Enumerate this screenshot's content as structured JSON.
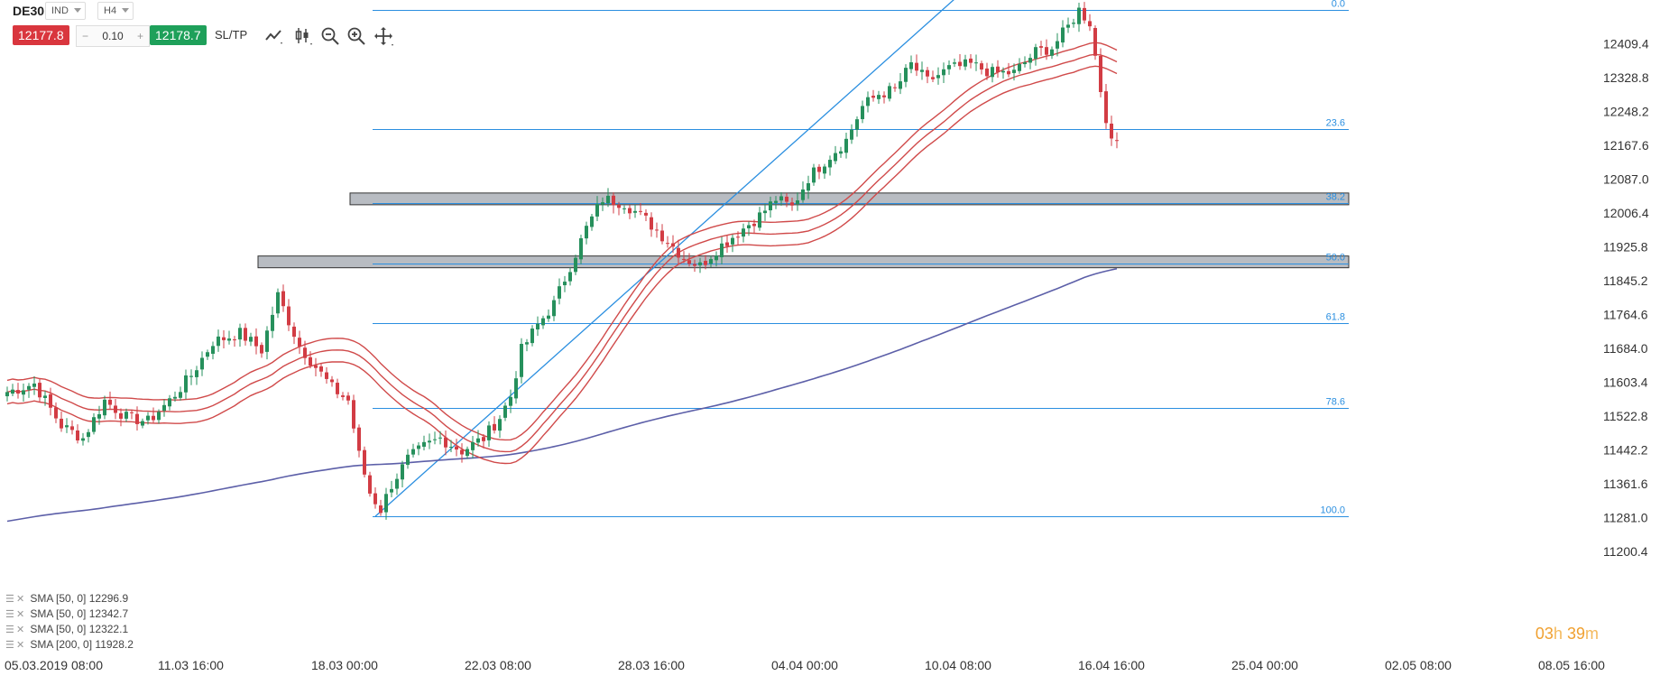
{
  "toolbar": {
    "symbol": "DE30",
    "type": "IND",
    "timeframe": "H4",
    "sell_price": "12177.8",
    "lot_minus": "−",
    "lot_value": "0.10",
    "lot_plus": "+",
    "buy_price": "12178.7",
    "sltp_label": "SL/TP",
    "tools": [
      "line-chart-icon",
      "candles-icon",
      "zoom-out-icon",
      "zoom-in-icon",
      "crosshair-move-icon"
    ]
  },
  "legend": [
    {
      "label": "SMA [50, 0]",
      "value": "12296.9"
    },
    {
      "label": "SMA [50, 0]",
      "value": "12342.7"
    },
    {
      "label": "SMA [50, 0]",
      "value": "12322.1"
    },
    {
      "label": "SMA [200, 0]",
      "value": "11928.2"
    }
  ],
  "timer": {
    "hours": "03",
    "h_unit": "h",
    "minutes": "39",
    "m_unit": "m"
  },
  "colors": {
    "up": "#26905c",
    "down": "#d23c44",
    "fib": "#2b8fe0",
    "sma50": "#d04a4a",
    "sma200": "#5c5fa8",
    "zone_fill": "#b8bcc2",
    "zone_border": "#333333",
    "axis_text": "#333333"
  },
  "chart_data": {
    "type": "candlestick",
    "symbol": "DE30",
    "timeframe": "H4",
    "ylim": [
      11200.4,
      12490.0
    ],
    "y_ticks": [
      "12409.4",
      "12328.8",
      "12248.2",
      "12167.6",
      "12087.0",
      "12006.4",
      "11925.8",
      "11845.2",
      "11764.6",
      "11684.0",
      "11603.4",
      "11522.8",
      "11442.2",
      "11361.6",
      "11281.0",
      "11200.4"
    ],
    "x_ticks": [
      "05.03.2019 08:00",
      "11.03 16:00",
      "18.03 00:00",
      "22.03 08:00",
      "28.03 16:00",
      "04.04 00:00",
      "10.04 08:00",
      "16.04 16:00",
      "25.04 00:00",
      "02.05 08:00",
      "08.05 16:00"
    ],
    "n_candles": 230,
    "fibonacci": {
      "high": 12490.0,
      "low": 11284.0,
      "levels": [
        {
          "label": "0.0",
          "value": 12490.0
        },
        {
          "label": "23.6",
          "value": 12205.4
        },
        {
          "label": "38.2",
          "value": 12029.3
        },
        {
          "label": "50.0",
          "value": 11887.0
        },
        {
          "label": "61.8",
          "value": 11744.7
        },
        {
          "label": "78.6",
          "value": 11542.1
        },
        {
          "label": "100.0",
          "value": 11284.0
        }
      ]
    },
    "trendline": {
      "from": {
        "candle": 68,
        "price": 11284.0
      },
      "to": {
        "candle": 173,
        "price": 12490.0
      }
    },
    "zones": [
      {
        "from_candle": 65,
        "price_top": 12054.0,
        "price_bottom": 12026.0
      },
      {
        "from_candle": 48,
        "price_top": 11904.0,
        "price_bottom": 11876.0
      }
    ],
    "anchors": [
      [
        0,
        11580
      ],
      [
        5,
        11600
      ],
      [
        10,
        11500
      ],
      [
        14,
        11470
      ],
      [
        18,
        11560
      ],
      [
        22,
        11520
      ],
      [
        26,
        11510
      ],
      [
        30,
        11560
      ],
      [
        34,
        11620
      ],
      [
        38,
        11700
      ],
      [
        43,
        11720
      ],
      [
        47,
        11680
      ],
      [
        50,
        11810
      ],
      [
        54,
        11690
      ],
      [
        57,
        11640
      ],
      [
        60,
        11590
      ],
      [
        63,
        11560
      ],
      [
        65,
        11430
      ],
      [
        67,
        11340
      ],
      [
        69,
        11300
      ],
      [
        71,
        11360
      ],
      [
        74,
        11420
      ],
      [
        77,
        11450
      ],
      [
        80,
        11470
      ],
      [
        84,
        11440
      ],
      [
        88,
        11470
      ],
      [
        91,
        11520
      ],
      [
        93,
        11570
      ],
      [
        95,
        11680
      ],
      [
        98,
        11740
      ],
      [
        101,
        11790
      ],
      [
        104,
        11880
      ],
      [
        107,
        11970
      ],
      [
        110,
        12040
      ],
      [
        114,
        12030
      ],
      [
        118,
        11990
      ],
      [
        122,
        11940
      ],
      [
        125,
        11900
      ],
      [
        128,
        11880
      ],
      [
        131,
        11920
      ],
      [
        134,
        11950
      ],
      [
        137,
        11980
      ],
      [
        139,
        12000
      ],
      [
        142,
        12040
      ],
      [
        145,
        12020
      ],
      [
        148,
        12090
      ],
      [
        151,
        12130
      ],
      [
        155,
        12180
      ],
      [
        158,
        12260
      ],
      [
        161,
        12290
      ],
      [
        164,
        12300
      ],
      [
        167,
        12360
      ],
      [
        170,
        12320
      ],
      [
        174,
        12350
      ],
      [
        178,
        12360
      ],
      [
        182,
        12340
      ],
      [
        186,
        12340
      ],
      [
        190,
        12390
      ],
      [
        193,
        12400
      ],
      [
        196,
        12450
      ],
      [
        198,
        12490
      ],
      [
        200,
        12460
      ],
      [
        202,
        12300
      ],
      [
        204,
        12170
      ],
      [
        205,
        12178
      ]
    ]
  }
}
